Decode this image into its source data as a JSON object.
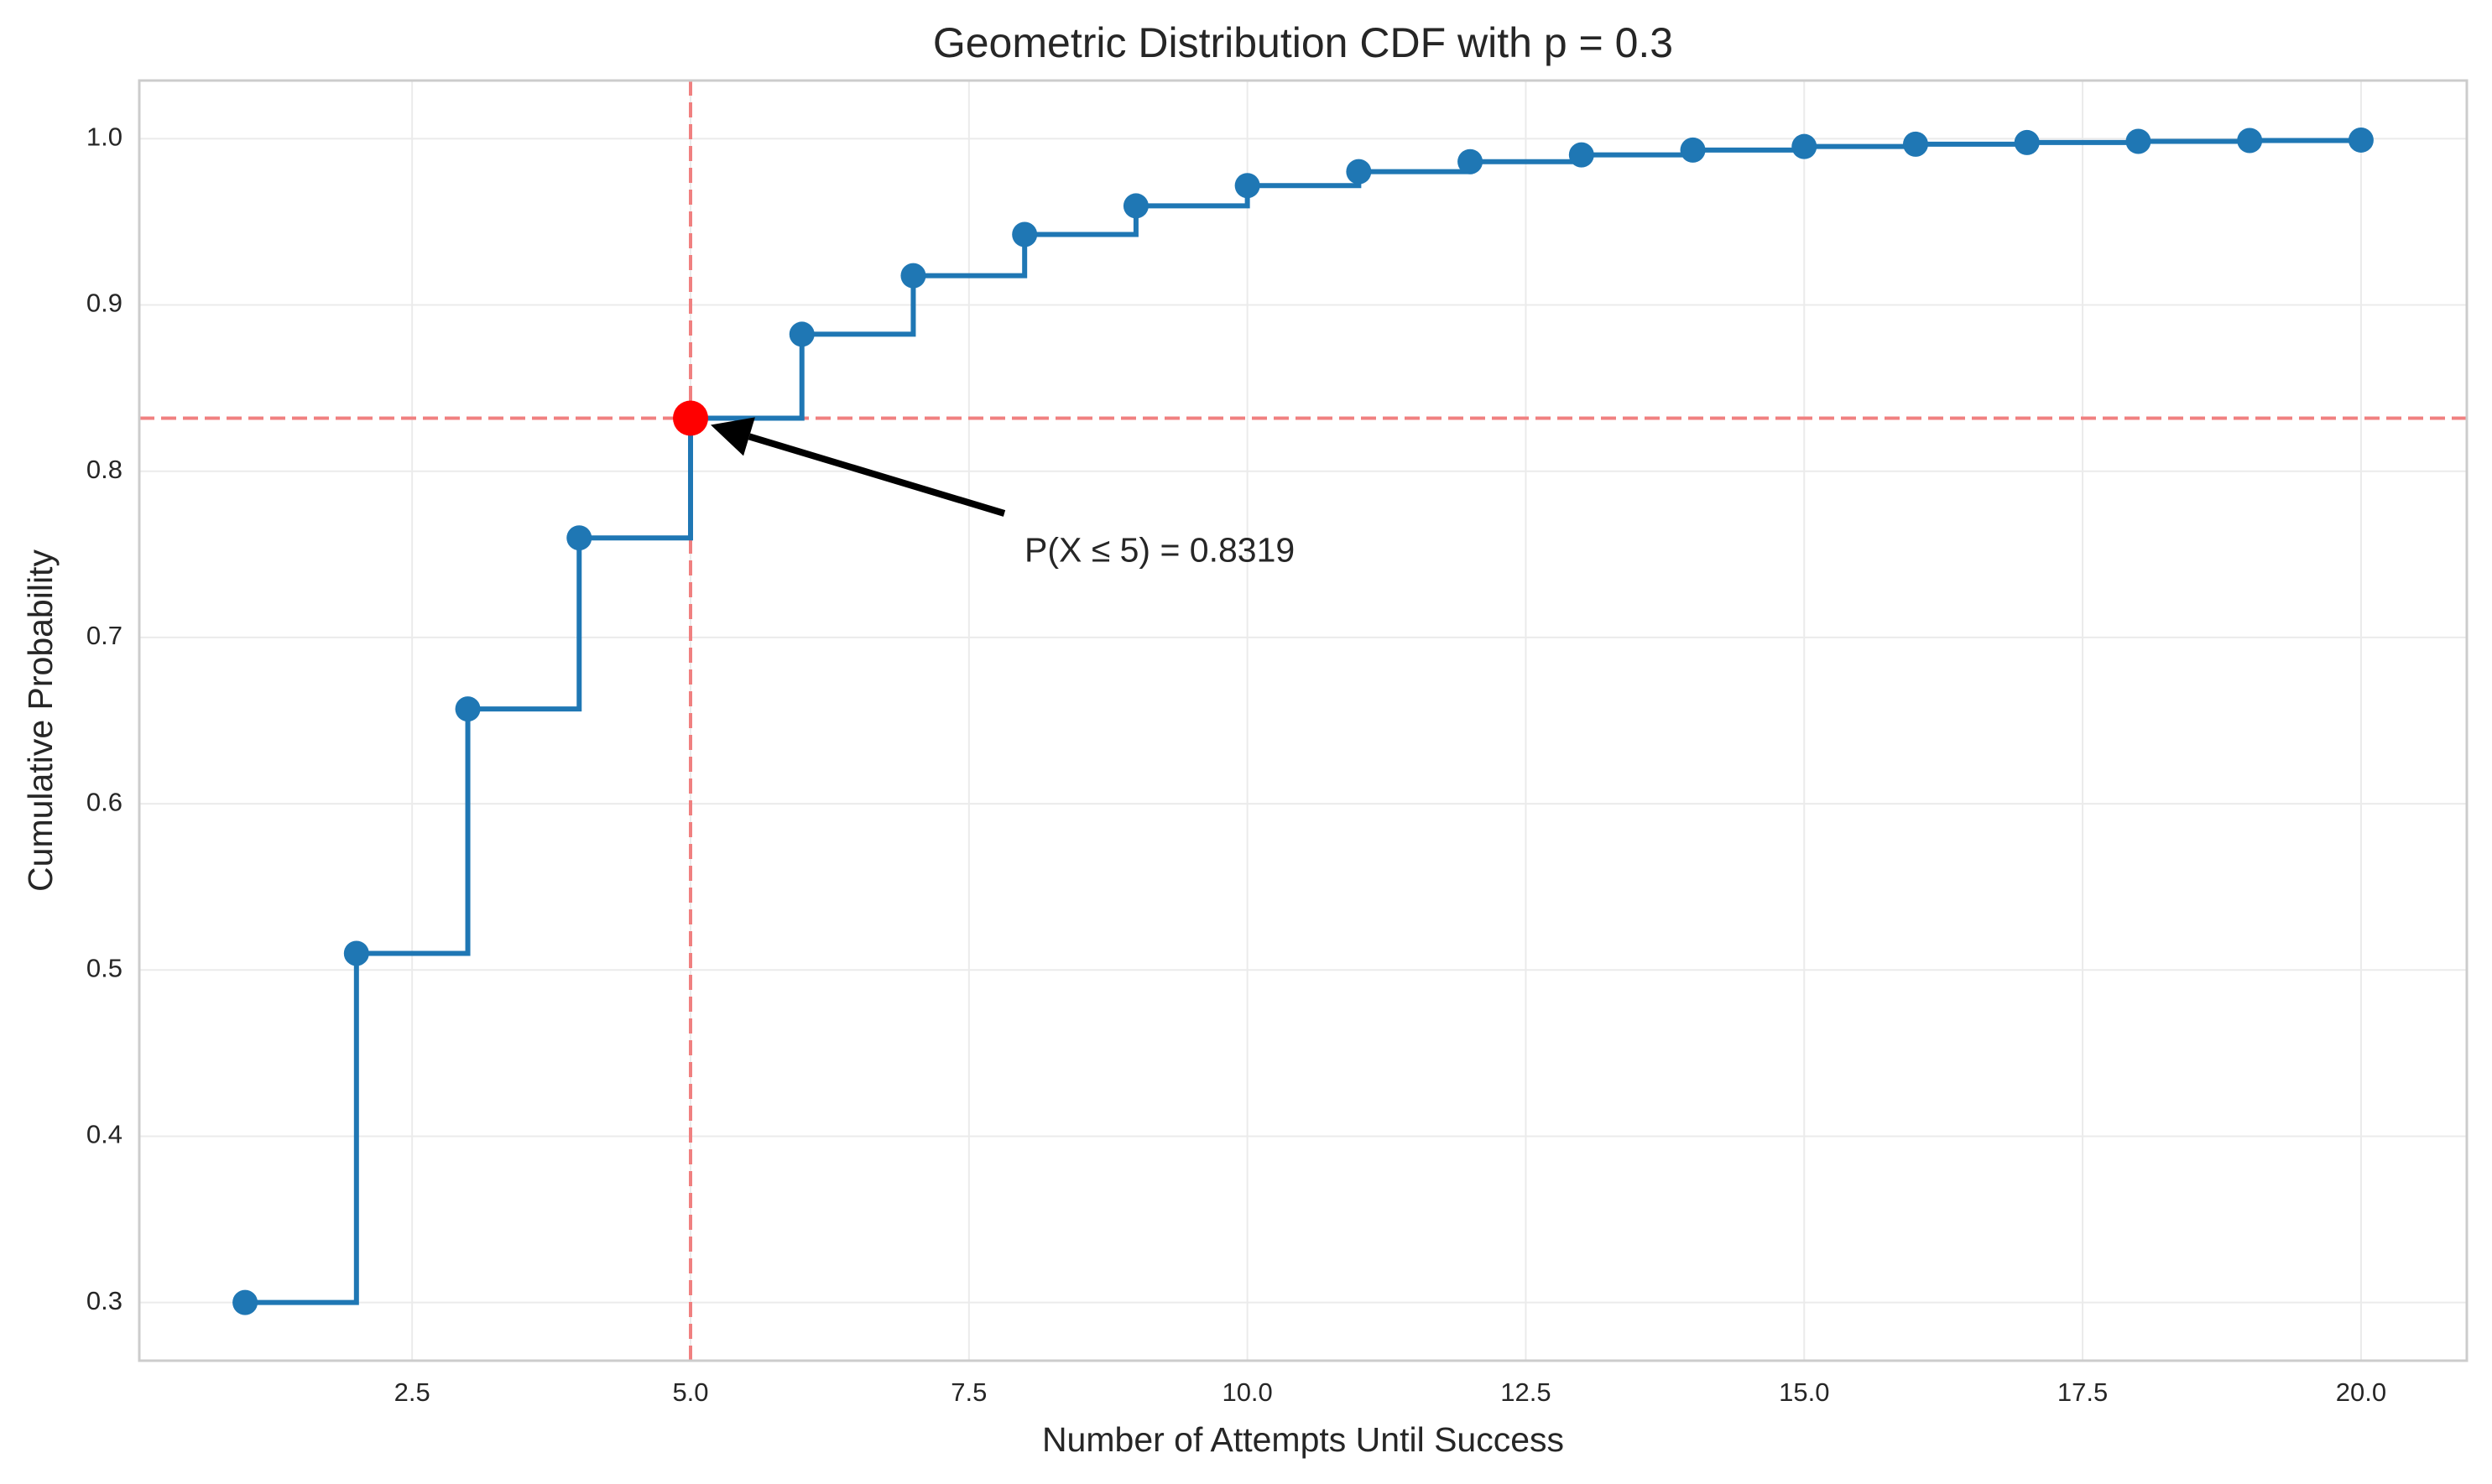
{
  "chart_data": {
    "type": "line",
    "title": "Geometric Distribution CDF with p = 0.3",
    "xlabel": "Number of Attempts Until Success",
    "ylabel": "Cumulative Probability",
    "xlim": [
      0.05,
      20.95
    ],
    "ylim": [
      0.265,
      1.035
    ],
    "x_ticks": [
      2.5,
      5.0,
      7.5,
      10.0,
      12.5,
      15.0,
      17.5,
      20.0
    ],
    "x_tick_labels": [
      "2.5",
      "5.0",
      "7.5",
      "10.0",
      "12.5",
      "15.0",
      "17.5",
      "20.0"
    ],
    "y_ticks": [
      0.3,
      0.4,
      0.5,
      0.6,
      0.7,
      0.8,
      0.9,
      1.0
    ],
    "y_tick_labels": [
      "0.3",
      "0.4",
      "0.5",
      "0.6",
      "0.7",
      "0.8",
      "0.9",
      "1.0"
    ],
    "grid": true,
    "series": [
      {
        "x": [
          1,
          2,
          3,
          4,
          5,
          6,
          7,
          8,
          9,
          10,
          11,
          12,
          13,
          14,
          15,
          16,
          17,
          18,
          19,
          20
        ],
        "y": [
          0.3,
          0.51,
          0.657,
          0.7599,
          0.8319,
          0.8824,
          0.9176,
          0.9424,
          0.9596,
          0.9718,
          0.9802,
          0.9862,
          0.9903,
          0.9932,
          0.9953,
          0.9967,
          0.9977,
          0.9984,
          0.9989,
          0.9992
        ],
        "style": "step-post",
        "color": "#1f77b4"
      }
    ],
    "highlight": {
      "x": 5,
      "y": 0.8319,
      "color": "#ff0000"
    },
    "reference_lines": {
      "x": 5,
      "y": 0.8319,
      "color": "#f08080",
      "style": "dashed"
    },
    "annotation": {
      "text": "P(X ≤ 5) = 0.8319",
      "points_to": [
        5,
        0.8319
      ],
      "text_at": [
        8,
        0.755
      ]
    }
  }
}
